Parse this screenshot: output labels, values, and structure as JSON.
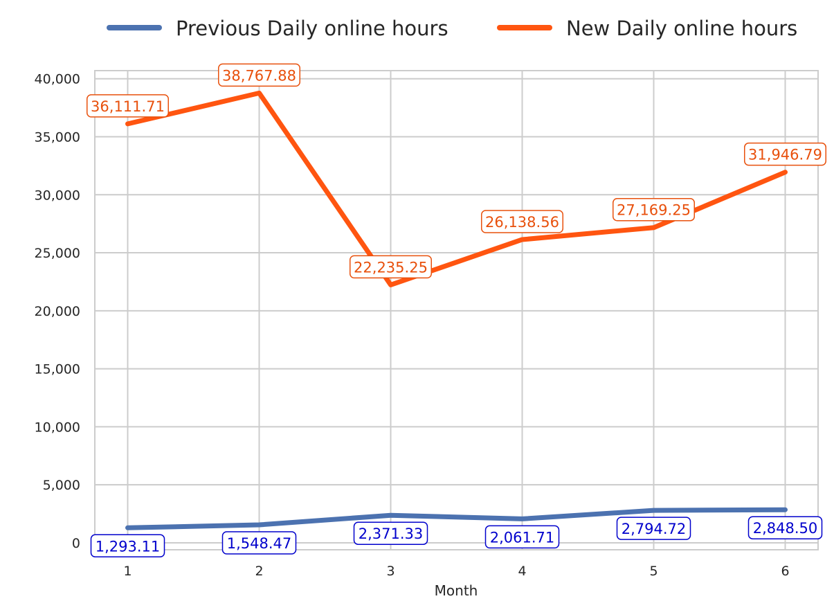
{
  "chart_data": {
    "type": "line",
    "xlabel": "Month",
    "ylabel": "",
    "x": [
      1,
      2,
      3,
      4,
      5,
      6
    ],
    "xlim": [
      0.75,
      6.25
    ],
    "ylim": [
      -600,
      40700
    ],
    "yticks": [
      0,
      5000,
      10000,
      15000,
      20000,
      25000,
      30000,
      35000,
      40000
    ],
    "ytick_labels": [
      "0",
      "5,000",
      "10,000",
      "15,000",
      "20,000",
      "25,000",
      "30,000",
      "35,000",
      "40,000"
    ],
    "xtick_labels": [
      "1",
      "2",
      "3",
      "4",
      "5",
      "6"
    ],
    "grid": true,
    "legend_position": "top-center, above plot",
    "series": [
      {
        "name": "Previous Daily online hours",
        "color": "#4C72B0",
        "label_color": "#0000CC",
        "values": [
          1293.11,
          1548.47,
          2371.33,
          2061.71,
          2794.72,
          2848.5
        ],
        "labels": [
          "1,293.11",
          "1,548.47",
          "2,371.33",
          "2,061.71",
          "2,794.72",
          "2,848.50"
        ]
      },
      {
        "name": "New Daily online hours",
        "color": "#FF5510",
        "label_color": "#E8500C",
        "values": [
          36111.71,
          38767.88,
          22235.25,
          26138.56,
          27169.25,
          31946.79
        ],
        "labels": [
          "36,111.71",
          "38,767.88",
          "22,235.25",
          "26,138.56",
          "27,169.25",
          "31,946.79"
        ]
      }
    ]
  }
}
